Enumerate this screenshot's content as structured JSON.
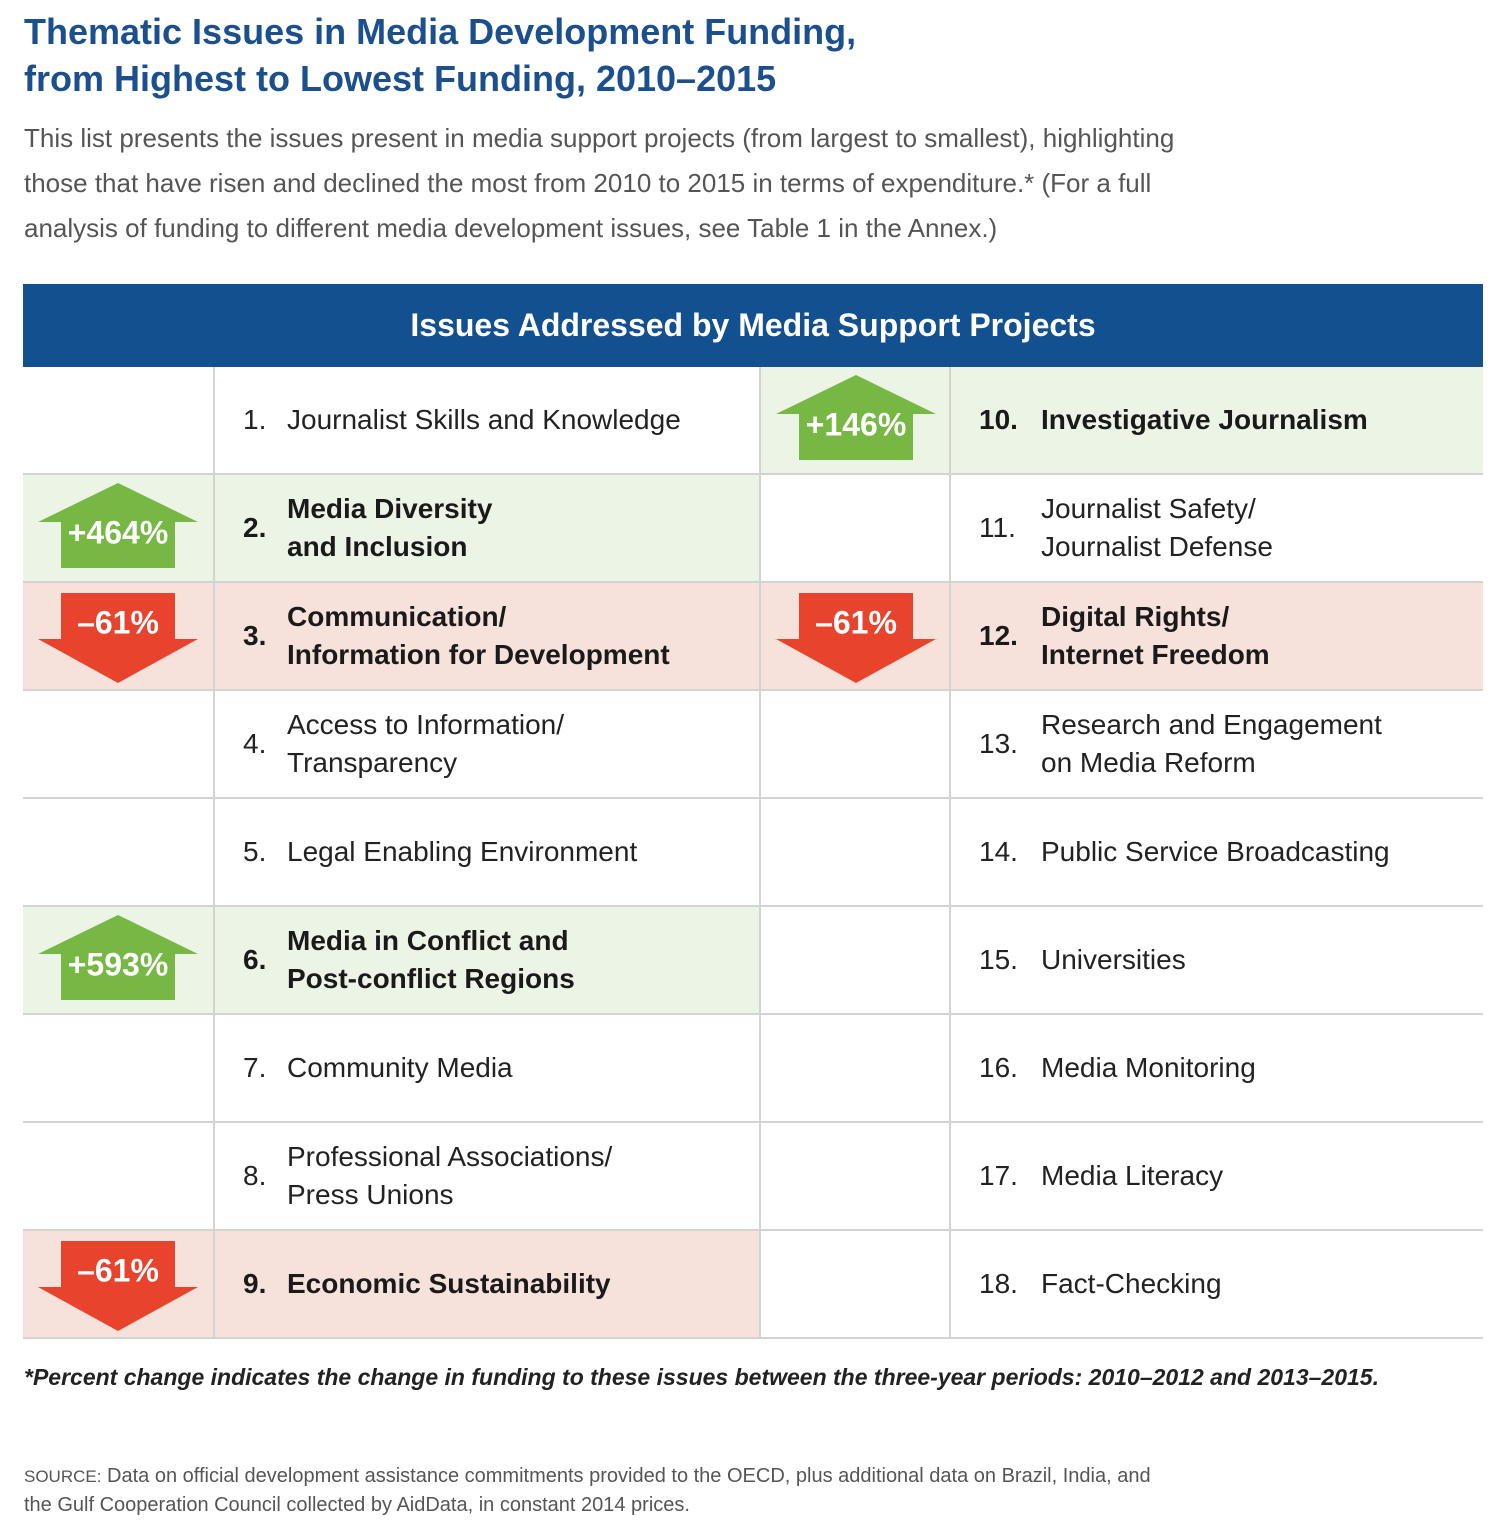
{
  "title": [
    "Thematic Issues in Media Development Funding,",
    "from Highest to Lowest Funding, 2010–2015"
  ],
  "intro": [
    "This list presents the issues present in media support projects (from largest to smallest), highlighting",
    "those that have risen and declined the most from 2010 to 2015 in terms of expenditure.* (For a full",
    "analysis of funding to different media development issues, see Table 1 in the Annex.)"
  ],
  "table": {
    "header": "Issues Addressed by Media Support Projects",
    "items": [
      {
        "number": "1.",
        "label": [
          "Journalist Skills and Knowledge"
        ]
      },
      {
        "number": "2.",
        "label": [
          "Media Diversity",
          "and Inclusion"
        ],
        "change": "+464%"
      },
      {
        "number": "3.",
        "label": [
          "Communication/",
          "Information for Development"
        ],
        "change": "–61%"
      },
      {
        "number": "4.",
        "label": [
          "Access to Information/",
          "Transparency"
        ]
      },
      {
        "number": "5.",
        "label": [
          "Legal Enabling Environment"
        ]
      },
      {
        "number": "6.",
        "label": [
          "Media in Conflict and",
          "Post-conflict Regions"
        ],
        "change": "+593%"
      },
      {
        "number": "7.",
        "label": [
          "Community Media"
        ]
      },
      {
        "number": "8.",
        "label": [
          "Professional Associations/",
          "Press Unions"
        ]
      },
      {
        "number": "9.",
        "label": [
          "Economic Sustainability"
        ],
        "change": "–61%"
      },
      {
        "number": "10.",
        "label": [
          "Investigative Journalism"
        ],
        "change": "+146%"
      },
      {
        "number": "11.",
        "label": [
          "Journalist Safety/",
          "Journalist Defense"
        ]
      },
      {
        "number": "12.",
        "label": [
          "Digital Rights/",
          "Internet Freedom"
        ],
        "change": "–61%"
      },
      {
        "number": "13.",
        "label": [
          "Research and Engagement",
          "on Media Reform"
        ]
      },
      {
        "number": "14.",
        "label": [
          "Public Service Broadcasting"
        ]
      },
      {
        "number": "15.",
        "label": [
          "Universities"
        ]
      },
      {
        "number": "16.",
        "label": [
          "Media Monitoring"
        ]
      },
      {
        "number": "17.",
        "label": [
          "Media Literacy"
        ]
      },
      {
        "number": "18.",
        "label": [
          "Fact-Checking"
        ]
      }
    ]
  },
  "footnote": "*Percent change indicates the change in funding to these issues between the three-year periods: 2010–2012 and 2013–2015.",
  "source": {
    "label": "SOURCE:",
    "lines": [
      "Data on official development assistance commitments provided to the OECD, plus additional data on Brazil, India, and",
      "the Gulf Cooperation Council collected by AidData, in constant 2014 prices."
    ]
  }
}
